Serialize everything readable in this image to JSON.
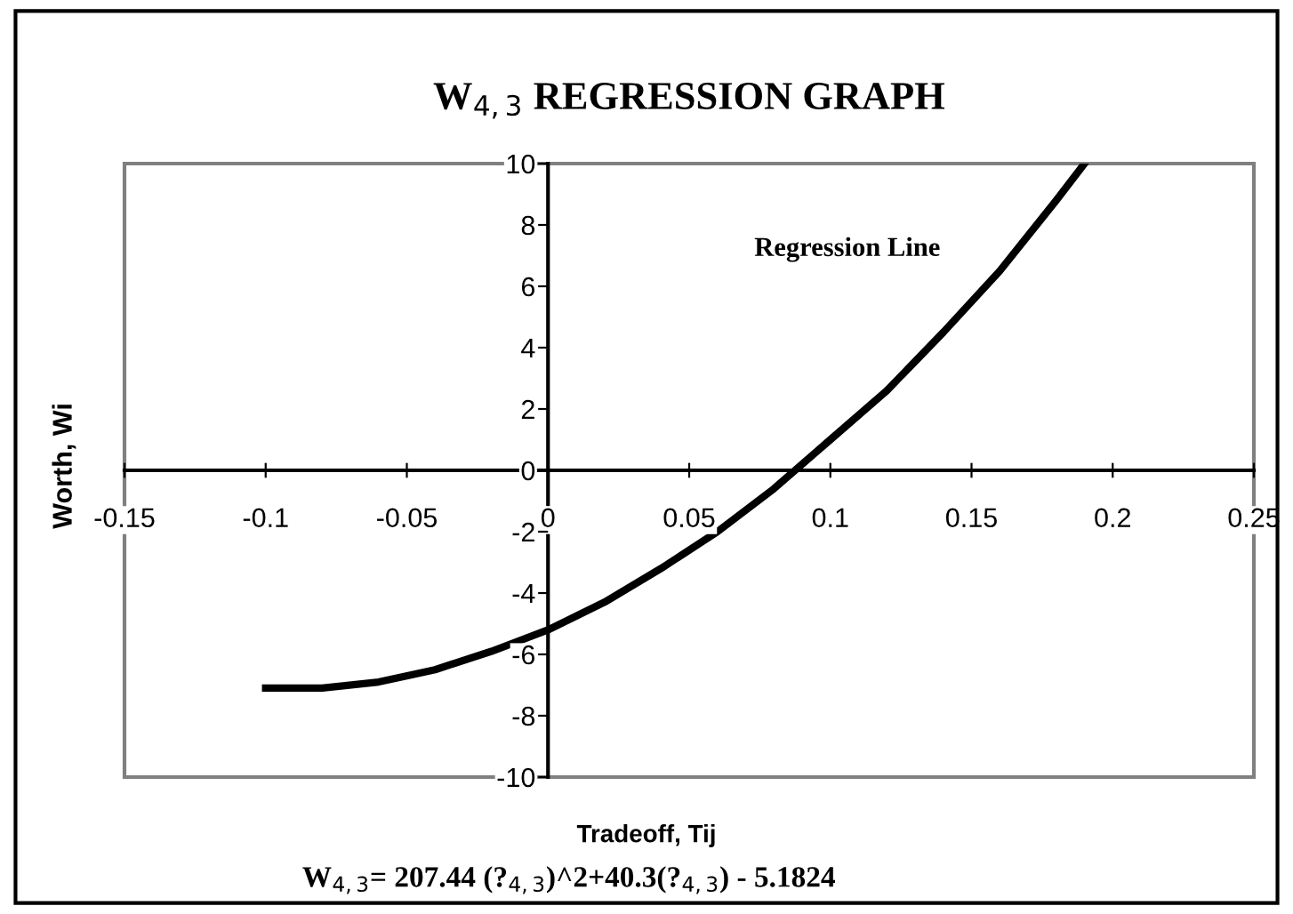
{
  "chart_data": {
    "type": "line",
    "title": "W$_{4,3}$ REGRESSION GRAPH",
    "xlabel": "Tradeoff, Tij",
    "ylabel": "Worth, Wi",
    "x": [
      -0.1,
      -0.08,
      -0.06,
      -0.04,
      -0.02,
      0,
      0.02,
      0.04,
      0.06,
      0.08,
      0.1,
      0.12,
      0.14,
      0.16,
      0.18,
      0.19
    ],
    "series": [
      {
        "color": "#000000",
        "values": [
          -7.1,
          -7.1,
          -6.9,
          -6.5,
          -5.9,
          -5.2,
          -4.3,
          -3.2,
          -2.0,
          -0.6,
          1.0,
          2.6,
          4.5,
          6.5,
          8.8,
          10
        ]
      }
    ],
    "xlim": [
      -0.15,
      0.25
    ],
    "xticks": [
      -0.15,
      -0.1,
      -0.05,
      0,
      0.05,
      0.1,
      0.15,
      0.2,
      0.25
    ],
    "ylim": [
      -10,
      10
    ],
    "yticks": [
      -10,
      -8,
      -6,
      -4,
      -2,
      0,
      2,
      4,
      6,
      8,
      10
    ],
    "grid": false,
    "legend": false,
    "marker": "none",
    "line_style": "solid",
    "annotations": [
      "Regression Line",
      "W$_{4,3}$= 207.44 (?$_{4,3}$)^2+40.3(?$_{4,3}$) - 5.1824"
    ]
  }
}
